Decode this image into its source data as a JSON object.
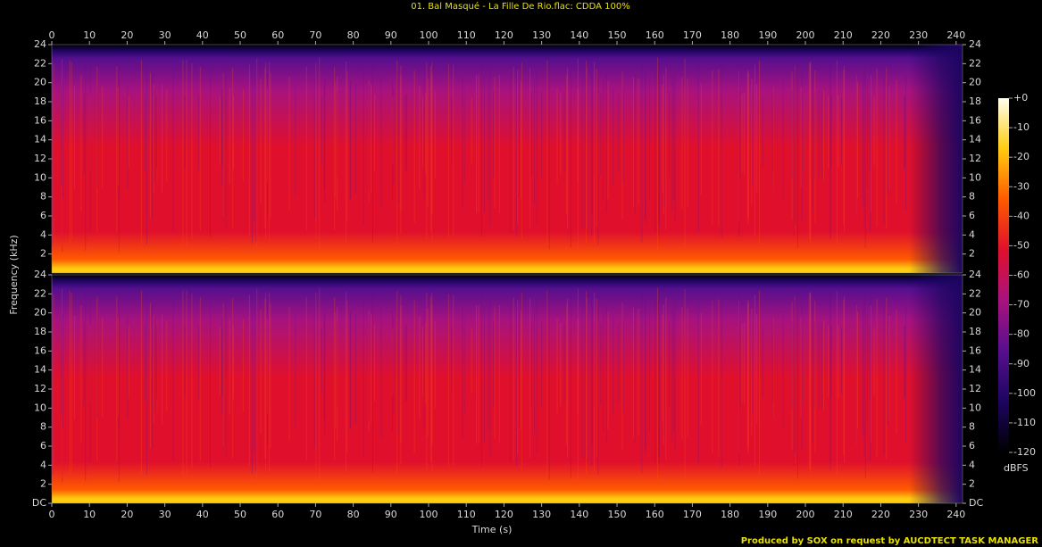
{
  "chart_data": {
    "type": "spectrogram",
    "title": "01. Bal Masqué - La Fille De Rio.flac: CDDA 100%",
    "xlabel": "Time (s)",
    "ylabel": "Frequency (kHz)",
    "xlim": [
      0,
      241.7
    ],
    "xticks": [
      0,
      10,
      20,
      30,
      40,
      50,
      60,
      70,
      80,
      90,
      100,
      110,
      120,
      130,
      140,
      150,
      160,
      170,
      180,
      190,
      200,
      210,
      220,
      230,
      240
    ],
    "panels": [
      {
        "ylim": [
          0,
          24
        ],
        "yticks": [
          2,
          4,
          6,
          8,
          10,
          12,
          14,
          16,
          18,
          20,
          22,
          24
        ]
      },
      {
        "ylim": [
          0,
          24
        ],
        "yticks": [
          {
            "value": 0,
            "label": "DC"
          },
          2,
          4,
          6,
          8,
          10,
          12,
          14,
          16,
          18,
          20,
          22,
          24
        ]
      }
    ],
    "colorbar": {
      "label": "dBFS",
      "zlim": [
        -120,
        0
      ],
      "ticks": [
        {
          "value": 0,
          "label": "+0"
        },
        -10,
        -20,
        -30,
        -40,
        -50,
        -60,
        -70,
        -80,
        -90,
        -100,
        -110,
        -120
      ]
    },
    "colorscale": [
      "#000000",
      "#1c0560",
      "#560f8e",
      "#a8127e",
      "#e0102c",
      "#ff5a00",
      "#ffcc10",
      "#fffff0"
    ],
    "annotations": [
      "Produced by SOX on request by AUCDTECT TASK MANAGER"
    ]
  }
}
